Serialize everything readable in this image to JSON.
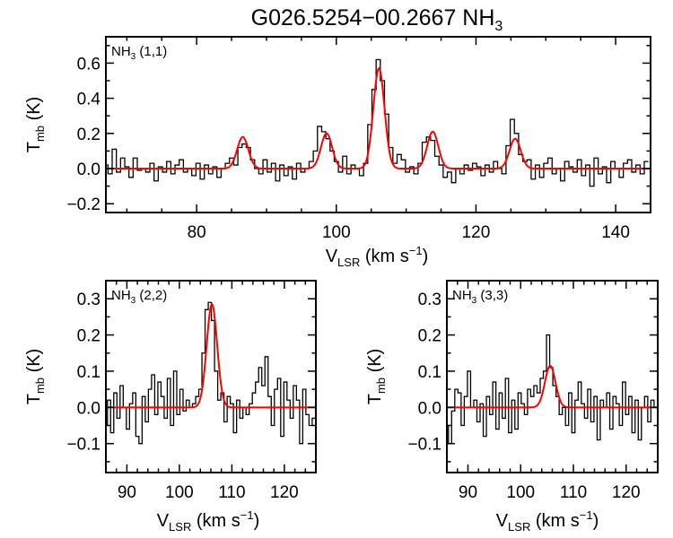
{
  "title": {
    "main": "G026.5254−00.2667 NH",
    "sub": "3"
  },
  "colors": {
    "spectrum": "#000000",
    "fit": "#ff0000"
  },
  "axis_labels": {
    "y": {
      "main": "T",
      "sub": "mb",
      "rest": " (K)"
    },
    "x": {
      "main": "V",
      "sub": "LSR",
      "rest": " (km s",
      "sup": "−1",
      "close": ")"
    }
  },
  "chart_data": [
    {
      "type": "line",
      "label": {
        "main": "NH",
        "sub": "3",
        "rest": " (1,1)"
      },
      "xlim": [
        67,
        145
      ],
      "ylim": [
        -0.25,
        0.75
      ],
      "xticks": [
        80,
        100,
        120,
        140
      ],
      "xminor": 5,
      "yticks": [
        -0.2,
        0.0,
        0.2,
        0.4,
        0.6
      ],
      "yminor": 0.1,
      "ytick_labels": [
        "−0.2",
        "0.0",
        "0.2",
        "0.4",
        "0.6"
      ],
      "observed": {
        "v_start": 67,
        "dv": 0.6,
        "T": [
          0.02,
          -0.03,
          0.11,
          -0.02,
          0.06,
          0.01,
          -0.05,
          0.06,
          -0.01,
          0.0,
          -0.02,
          0.03,
          -0.07,
          0.01,
          -0.02,
          0.04,
          -0.03,
          0.02,
          0.05,
          -0.02,
          0.0,
          -0.04,
          0.03,
          -0.06,
          0.02,
          -0.03,
          0.01,
          -0.05,
          0.0,
          0.03,
          0.06,
          0.02,
          0.12,
          0.14,
          0.12,
          0.05,
          0.0,
          -0.03,
          0.05,
          -0.02,
          0.03,
          -0.07,
          0.02,
          -0.04,
          0.01,
          -0.06,
          0.03,
          -0.02,
          0.0,
          0.04,
          0.1,
          0.24,
          0.21,
          0.17,
          0.1,
          0.04,
          -0.02,
          0.07,
          -0.03,
          0.02,
          0.0,
          -0.04,
          0.03,
          0.25,
          0.45,
          0.62,
          0.5,
          0.31,
          0.12,
          0.03,
          0.08,
          0.05,
          -0.02,
          0.01,
          -0.03,
          0.03,
          0.15,
          0.18,
          0.16,
          0.07,
          0.02,
          -0.05,
          -0.02,
          -0.08,
          0.0,
          -0.03,
          0.02,
          -0.01,
          0.03,
          0.01,
          -0.04,
          0.02,
          -0.02,
          0.04,
          0.0,
          -0.03,
          0.13,
          0.28,
          0.2,
          0.08,
          0.04,
          0.05,
          -0.06,
          0.02,
          -0.05,
          0.03,
          0.06,
          -0.03,
          0.0,
          -0.07,
          0.04,
          0.01,
          -0.02,
          0.05,
          -0.04,
          0.02,
          -0.1,
          0.06,
          -0.03,
          0.01,
          -0.08,
          0.04,
          0.0,
          -0.05,
          0.03,
          0.05,
          -0.02,
          0.02,
          -0.03,
          0.04
        ]
      },
      "fit_components": [
        {
          "center": 86.6,
          "amp": 0.18,
          "sigma": 0.8
        },
        {
          "center": 98.6,
          "amp": 0.2,
          "sigma": 0.8
        },
        {
          "center": 106.1,
          "amp": 0.57,
          "sigma": 0.8
        },
        {
          "center": 113.8,
          "amp": 0.21,
          "sigma": 0.8
        },
        {
          "center": 125.6,
          "amp": 0.17,
          "sigma": 0.8
        }
      ]
    },
    {
      "type": "line",
      "label": {
        "main": "NH",
        "sub": "3",
        "rest": " (2,2)"
      },
      "xlim": [
        86,
        126
      ],
      "ylim": [
        -0.18,
        0.35
      ],
      "xticks": [
        90,
        100,
        110,
        120
      ],
      "xminor": 2,
      "yticks": [
        -0.1,
        0.0,
        0.1,
        0.2,
        0.3
      ],
      "yminor": 0.05,
      "ytick_labels": [
        "−0.1",
        "0.0",
        "0.1",
        "0.2",
        "0.3"
      ],
      "observed": {
        "v_start": 86,
        "dv": 0.6,
        "T": [
          -0.05,
          0.02,
          -0.07,
          0.04,
          -0.03,
          0.06,
          0.0,
          -0.06,
          0.01,
          0.04,
          -0.08,
          -0.1,
          0.03,
          -0.04,
          0.05,
          0.09,
          -0.02,
          0.07,
          0.03,
          -0.03,
          0.08,
          -0.05,
          0.1,
          -0.02,
          0.05,
          -0.01,
          0.02,
          0.0,
          0.01,
          0.03,
          0.05,
          0.15,
          0.27,
          0.29,
          0.24,
          0.1,
          0.02,
          0.04,
          -0.04,
          0.03,
          0.01,
          -0.07,
          0.02,
          -0.03,
          0.0,
          -0.02,
          0.01,
          0.04,
          0.07,
          0.11,
          0.06,
          0.14,
          0.03,
          -0.05,
          0.05,
          0.08,
          -0.08,
          0.07,
          0.02,
          -0.03,
          0.06,
          0.02,
          -0.1,
          0.05,
          -0.02,
          -0.05,
          -0.03
        ]
      },
      "fit_components": [
        {
          "center": 106.2,
          "amp": 0.285,
          "sigma": 1.0
        }
      ]
    },
    {
      "type": "line",
      "label": {
        "main": "NH",
        "sub": "3",
        "rest": " (3,3)"
      },
      "xlim": [
        86,
        126
      ],
      "ylim": [
        -0.18,
        0.35
      ],
      "xticks": [
        90,
        100,
        110,
        120
      ],
      "xminor": 2,
      "yticks": [
        -0.1,
        0.0,
        0.1,
        0.2,
        0.3
      ],
      "yminor": 0.05,
      "ytick_labels": [
        "−0.1",
        "0.0",
        "0.1",
        "0.2",
        "0.3"
      ],
      "observed": {
        "v_start": 86,
        "dv": 0.6,
        "T": [
          -0.05,
          -0.1,
          -0.01,
          0.05,
          0.04,
          -0.05,
          0.03,
          0.1,
          0.0,
          0.02,
          -0.04,
          0.01,
          -0.08,
          0.03,
          -0.02,
          0.07,
          -0.06,
          0.04,
          -0.03,
          0.08,
          -0.07,
          0.02,
          -0.06,
          0.04,
          0.01,
          -0.02,
          0.05,
          0.03,
          0.06,
          0.04,
          0.08,
          0.1,
          0.2,
          0.11,
          0.06,
          0.03,
          -0.02,
          0.0,
          -0.05,
          0.04,
          -0.07,
          0.02,
          0.07,
          0.01,
          -0.03,
          0.05,
          -0.04,
          0.03,
          -0.09,
          0.02,
          0.0,
          0.04,
          -0.06,
          0.03,
          0.01,
          -0.05,
          0.07,
          -0.02,
          0.03,
          -0.07,
          0.02,
          -0.09,
          0.0,
          0.03,
          -0.04,
          0.02,
          0.0
        ]
      },
      "fit_components": [
        {
          "center": 105.6,
          "amp": 0.115,
          "sigma": 1.0
        }
      ]
    }
  ]
}
